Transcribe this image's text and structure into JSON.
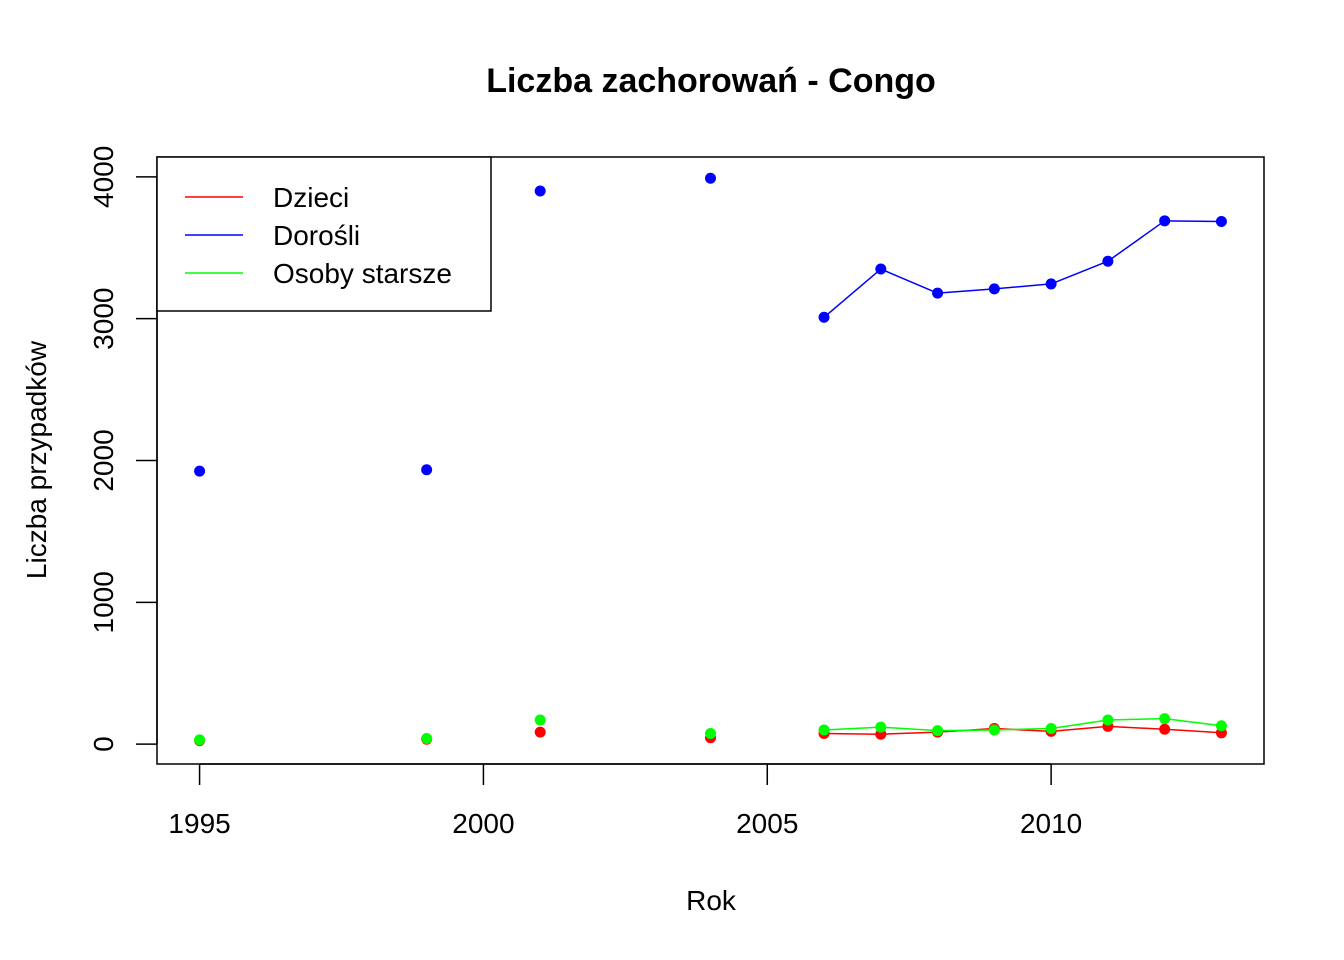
{
  "chart_data": {
    "type": "line",
    "title": "Liczba zachorowań -  Congo",
    "xlabel": "Rok",
    "ylabel": "Liczba przypadków",
    "xlim": [
      1994.25,
      2013.75
    ],
    "ylim": [
      -140,
      4140
    ],
    "xticks": [
      1995,
      2000,
      2005,
      2010
    ],
    "yticks": [
      0,
      1000,
      2000,
      3000,
      4000
    ],
    "grid": false,
    "legend_position": "top-left",
    "series": [
      {
        "name": "Dzieci",
        "color": "#ff0000",
        "points": [
          {
            "x": 1995,
            "y": 25
          },
          {
            "x": 1999,
            "y": 35
          },
          {
            "x": 2001,
            "y": 85
          },
          {
            "x": 2004,
            "y": 45
          },
          {
            "x": 2006,
            "y": 75
          },
          {
            "x": 2007,
            "y": 70
          },
          {
            "x": 2008,
            "y": 85
          },
          {
            "x": 2009,
            "y": 110
          },
          {
            "x": 2010,
            "y": 90
          },
          {
            "x": 2011,
            "y": 125
          },
          {
            "x": 2012,
            "y": 105
          },
          {
            "x": 2013,
            "y": 80
          }
        ]
      },
      {
        "name": "Dorośli",
        "color": "#0000ff",
        "points": [
          {
            "x": 1995,
            "y": 1925
          },
          {
            "x": 1999,
            "y": 1935
          },
          {
            "x": 2001,
            "y": 3900
          },
          {
            "x": 2004,
            "y": 3990
          },
          {
            "x": 2006,
            "y": 3010
          },
          {
            "x": 2007,
            "y": 3350
          },
          {
            "x": 2008,
            "y": 3180
          },
          {
            "x": 2009,
            "y": 3210
          },
          {
            "x": 2010,
            "y": 3245
          },
          {
            "x": 2011,
            "y": 3405
          },
          {
            "x": 2012,
            "y": 3690
          },
          {
            "x": 2013,
            "y": 3685
          }
        ]
      },
      {
        "name": "Osoby starsze",
        "color": "#00ff00",
        "points": [
          {
            "x": 1995,
            "y": 30
          },
          {
            "x": 1999,
            "y": 40
          },
          {
            "x": 2001,
            "y": 170
          },
          {
            "x": 2004,
            "y": 75
          },
          {
            "x": 2006,
            "y": 100
          },
          {
            "x": 2007,
            "y": 120
          },
          {
            "x": 2008,
            "y": 95
          },
          {
            "x": 2009,
            "y": 100
          },
          {
            "x": 2010,
            "y": 110
          },
          {
            "x": 2011,
            "y": 170
          },
          {
            "x": 2012,
            "y": 180
          },
          {
            "x": 2013,
            "y": 130
          }
        ]
      }
    ]
  }
}
